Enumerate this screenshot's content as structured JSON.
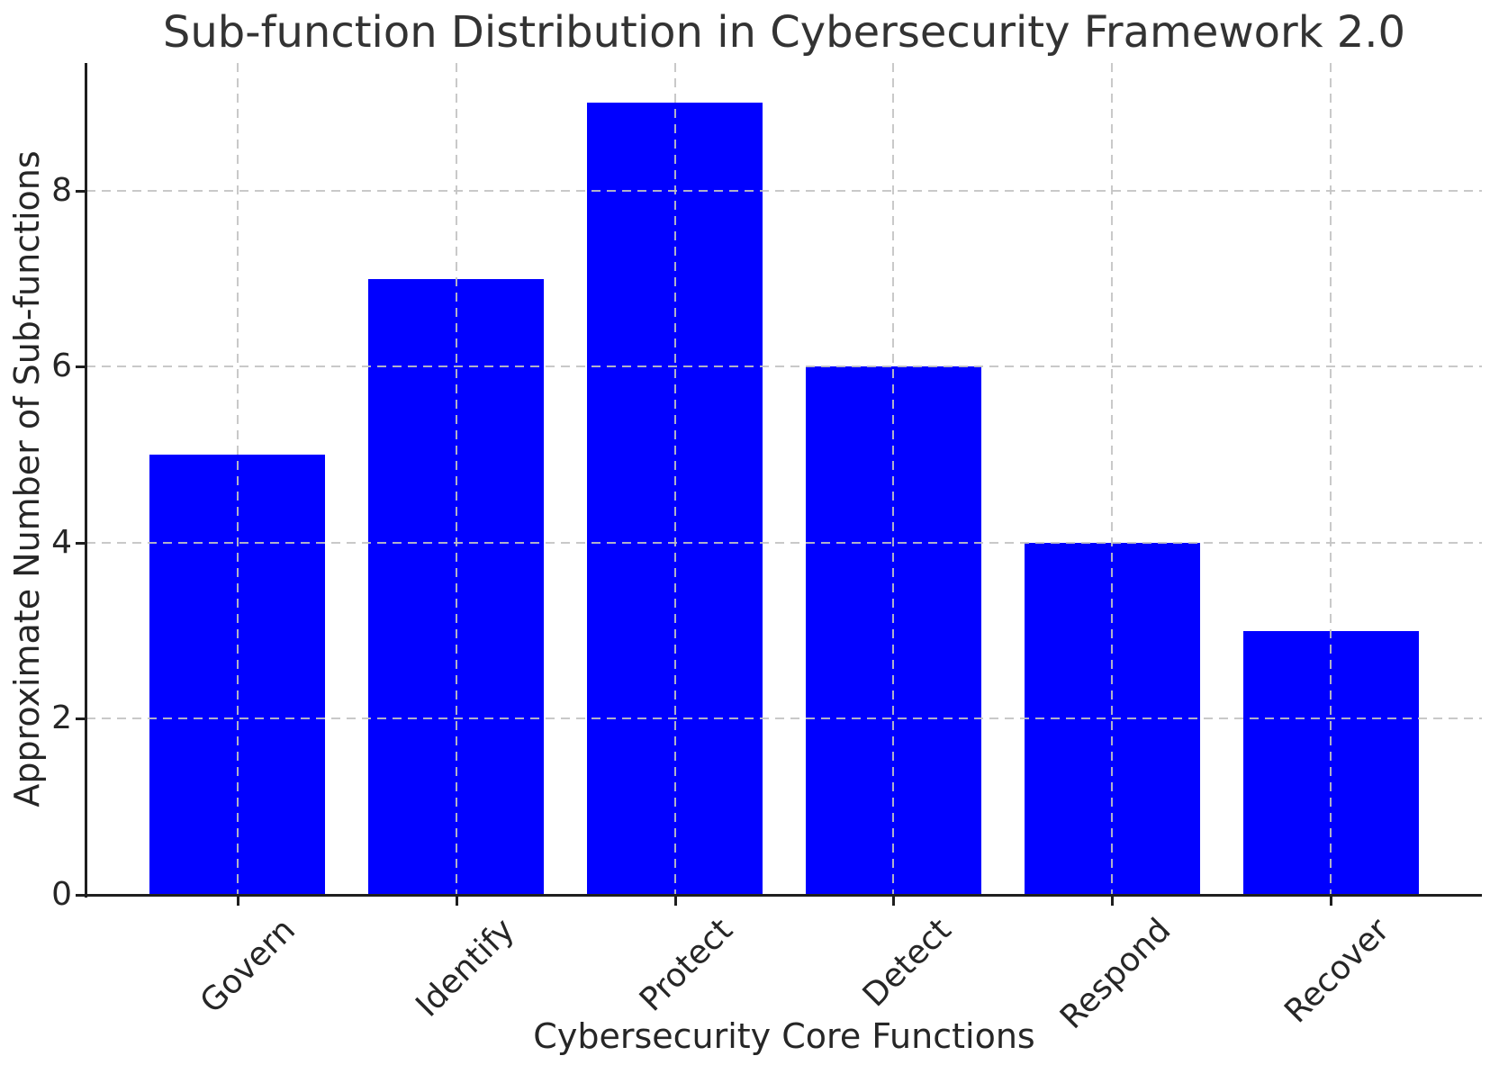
{
  "chart_data": {
    "type": "bar",
    "title": "Sub-function Distribution in Cybersecurity Framework 2.0",
    "xlabel": "Cybersecurity Core Functions",
    "ylabel": "Approximate Number of Sub-functions",
    "categories": [
      "Govern",
      "Identify",
      "Protect",
      "Detect",
      "Respond",
      "Recover"
    ],
    "values": [
      5,
      7,
      9,
      6,
      4,
      3
    ],
    "yticks": [
      "0",
      "2",
      "4",
      "6",
      "8"
    ],
    "ytick_values": [
      0,
      2,
      4,
      6,
      8
    ],
    "ylim": [
      0,
      9.45
    ],
    "bar_color": "#0000ff",
    "grid": "dashed",
    "grid_color": "#c3c3c3",
    "axis_color": "#1f1f1f",
    "text_color": "#262626",
    "background": "#ffffff",
    "legend_position": "none",
    "x_tick_rotation_deg": 45
  }
}
